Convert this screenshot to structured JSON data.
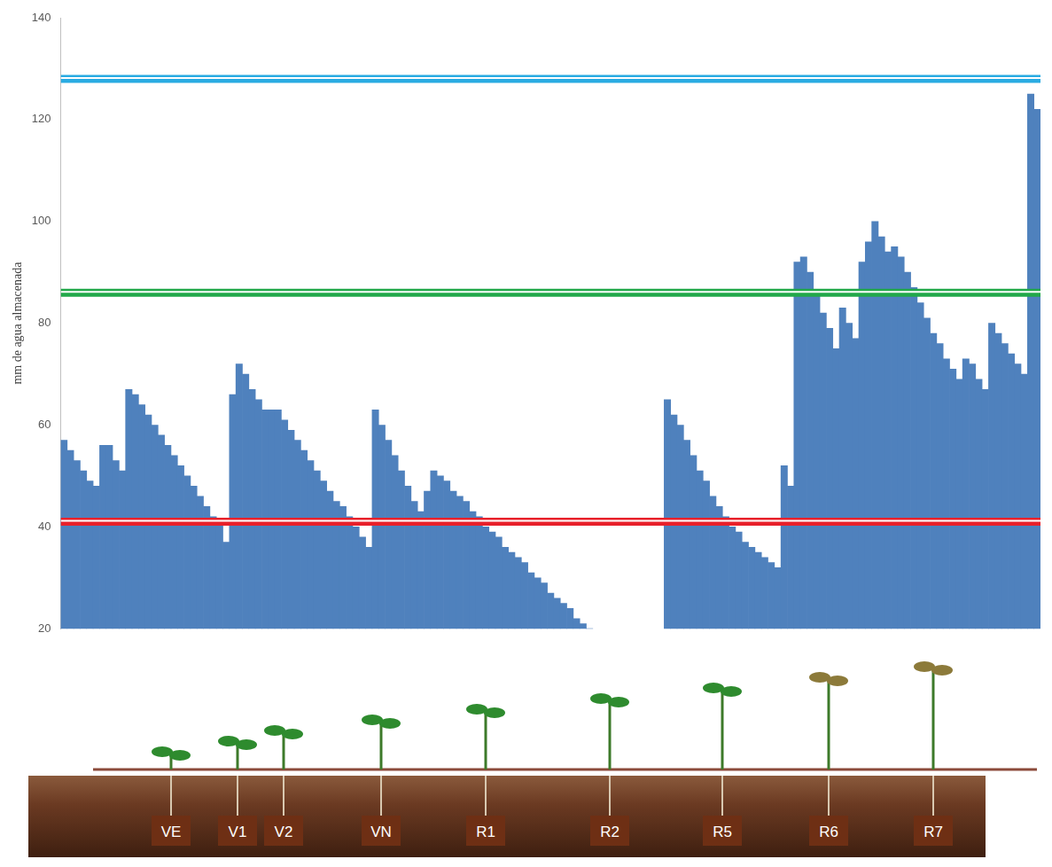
{
  "chart_data": {
    "type": "bar",
    "y_label": "mm de agua almacenada",
    "categories": [
      null,
      null,
      null,
      null,
      null,
      null,
      null,
      null,
      null,
      null,
      null,
      null,
      null,
      null,
      null,
      null,
      null,
      null,
      null,
      null,
      null,
      null,
      null,
      null,
      null,
      null,
      null,
      null,
      null,
      null,
      null,
      null,
      null,
      null,
      null,
      null,
      null,
      null,
      null,
      null,
      null,
      null,
      null,
      null,
      null,
      null,
      null,
      null,
      null,
      null,
      null,
      null,
      null,
      null,
      null,
      null,
      null,
      null,
      null,
      null,
      null,
      null,
      null,
      null,
      null,
      null,
      null,
      null,
      null,
      null,
      null,
      null,
      null,
      null,
      null,
      null,
      null,
      null,
      null,
      null,
      null,
      null,
      null,
      null,
      null,
      null,
      null,
      null,
      null,
      null,
      null,
      null,
      null,
      null,
      null,
      null,
      null,
      null,
      null,
      null,
      null,
      null,
      null,
      null,
      null,
      null,
      null,
      null,
      null,
      null,
      null,
      null,
      null,
      null,
      null,
      null,
      null,
      null,
      null,
      null,
      null,
      null,
      null,
      null,
      null,
      null,
      null,
      null,
      null,
      null,
      null,
      null,
      null,
      null,
      null,
      null,
      null,
      null,
      null,
      null,
      null,
      null,
      null,
      null,
      null,
      null,
      null,
      null,
      null,
      null,
      null
    ],
    "values": [
      57,
      55,
      53,
      51,
      49,
      48,
      56,
      56,
      53,
      51,
      67,
      66,
      64,
      62,
      60,
      58,
      56,
      54,
      52,
      50,
      48,
      46,
      44,
      42,
      41,
      37,
      66,
      72,
      70,
      67,
      65,
      63,
      63,
      63,
      61,
      59,
      57,
      55,
      53,
      51,
      49,
      47,
      45,
      44,
      42,
      40,
      38,
      36,
      63,
      60,
      57,
      54,
      51,
      48,
      45,
      43,
      47,
      51,
      50,
      49,
      47,
      46,
      45,
      43,
      42,
      40,
      39,
      38,
      36,
      35,
      34,
      33,
      31,
      30,
      29,
      27,
      26,
      25,
      24,
      22,
      21,
      20,
      null,
      null,
      null,
      null,
      null,
      null,
      null,
      null,
      null,
      null,
      null,
      65,
      62,
      60,
      57,
      54,
      51,
      49,
      46,
      44,
      42,
      40,
      39,
      37,
      36,
      35,
      34,
      33,
      32,
      52,
      48,
      92,
      93,
      90,
      86,
      82,
      79,
      75,
      83,
      80,
      77,
      92,
      96,
      100,
      97,
      94,
      95,
      93,
      90,
      87,
      84,
      81,
      78,
      76,
      73,
      71,
      69,
      73,
      72,
      69,
      67,
      80,
      78,
      76,
      74,
      72,
      70,
      125,
      122
    ],
    "color": "#4f81bd",
    "ylim": [
      20,
      140
    ],
    "yticks": [
      20,
      40,
      60,
      80,
      100,
      120,
      140
    ],
    "grid": false,
    "tick_labels": "y",
    "reference_lines": [
      {
        "value": 128,
        "color": "#29abe2"
      },
      {
        "value": 86,
        "color": "#22a84a"
      },
      {
        "value": 41,
        "color": "#e8202a"
      }
    ]
  },
  "stages": [
    "VE",
    "V1",
    "V2",
    "VN",
    "R1",
    "R2",
    "R5",
    "R6",
    "R7"
  ]
}
